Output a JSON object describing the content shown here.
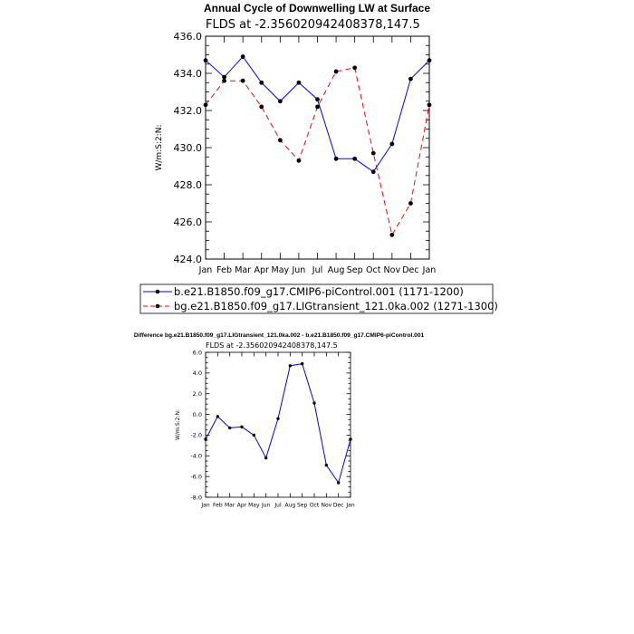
{
  "chart_data": [
    {
      "type": "line",
      "title": "Annual Cycle of Downwelling LW at Surface",
      "subtitle": "FLDS at -2.356020942408378,147.5",
      "ylabel": "W/m:S:2:N:",
      "ylim": [
        424,
        436
      ],
      "yticks": [
        "424.0",
        "426.0",
        "428.0",
        "430.0",
        "432.0",
        "434.0",
        "436.0"
      ],
      "categories": [
        "Jan",
        "Feb",
        "Mar",
        "Apr",
        "May",
        "Jun",
        "Jul",
        "Aug",
        "Sep",
        "Oct",
        "Nov",
        "Dec",
        "Jan"
      ],
      "series": [
        {
          "name": "b.e21.B1850.f09_g17.CMIP6-piControl.001 (1171-1200)",
          "color": "#0000ff",
          "dash": "solid",
          "values": [
            434.7,
            433.8,
            434.9,
            433.5,
            432.5,
            433.5,
            432.6,
            429.4,
            429.4,
            428.7,
            430.2,
            433.7,
            434.7
          ]
        },
        {
          "name": "bg.e21.B1850.f09_g17.LIGtransient_121.0ka.002 (1271-1300)",
          "color": "#ff0000",
          "dash": "dashed",
          "values": [
            432.3,
            433.6,
            433.6,
            432.2,
            430.4,
            429.3,
            432.2,
            434.1,
            434.3,
            429.7,
            425.3,
            427.0,
            432.3
          ]
        }
      ],
      "legend_position": "bottom"
    },
    {
      "type": "line",
      "title": "Difference bg.e21.B1850.f09_g17.LIGtransient_121.0ka.002 - b.e21.B1850.f09_g17.CMIP6-piControl.001",
      "subtitle": "FLDS at -2.356020942408378,147.5",
      "ylabel": "W/m:S:2:N:",
      "ylim": [
        -8,
        6
      ],
      "yticks": [
        "-8.0",
        "-6.0",
        "-4.0",
        "-2.0",
        "0.0",
        "2.0",
        "4.0",
        "6.0"
      ],
      "categories": [
        "Jan",
        "Feb",
        "Mar",
        "Apr",
        "May",
        "Jun",
        "Jul",
        "Aug",
        "Sep",
        "Oct",
        "Nov",
        "Dec",
        "Jan"
      ],
      "series": [
        {
          "color": "#0000ff",
          "dash": "solid",
          "values": [
            -2.4,
            -0.2,
            -1.3,
            -1.2,
            -2.0,
            -4.2,
            -0.4,
            4.7,
            4.9,
            1.1,
            -4.9,
            -6.6,
            -2.4
          ]
        }
      ]
    }
  ]
}
